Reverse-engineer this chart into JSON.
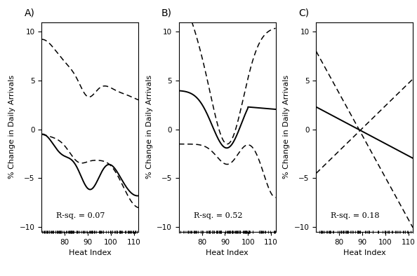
{
  "xlim": [
    70,
    112
  ],
  "ylim": [
    -10.5,
    11
  ],
  "yticks": [
    -10,
    -5,
    0,
    5,
    10
  ],
  "xticks": [
    80,
    90,
    100,
    110
  ],
  "xlabel": "Heat Index",
  "ylabel": "% Change in Daily Arrivals",
  "panels": [
    "A)",
    "B)",
    "C)"
  ],
  "rsq": [
    "R-sq. = 0.07",
    "R-sq. = 0.52",
    "R-sq. = 0.18"
  ],
  "background": "#ffffff",
  "line_color": "#000000",
  "dash_color": "#000000",
  "figwidth": 5.94,
  "figheight": 3.94,
  "dpi": 100
}
